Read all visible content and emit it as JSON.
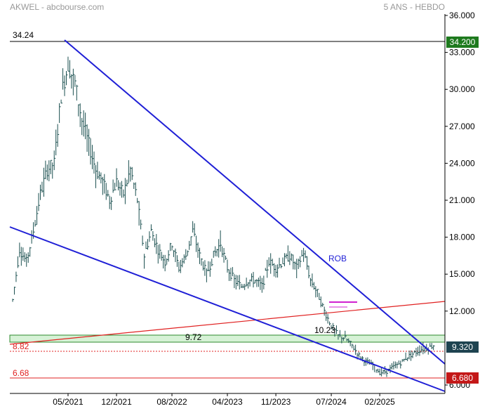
{
  "header": {
    "left_title": "AKWEL - abcbourse.com",
    "right_title": "5 ANS - HEBDO"
  },
  "colors": {
    "trendline": "#1f1fd6",
    "support": "#e02020",
    "zone_fill": "#d6f2d6",
    "zone_border": "#2e8b2e",
    "candle": "#1a4f4f",
    "last_price_badge": "#1e4350",
    "high_badge": "#1e7a1e",
    "low_badge": "#c41818",
    "marker": "#d020d0"
  },
  "chart_data": {
    "type": "candlestick",
    "title": "AKWEL - abcbourse.com",
    "subtitle": "5 ANS - HEBDO",
    "ylim": [
      6.0,
      36.0
    ],
    "y_ticks": [
      "36.000",
      "33.000",
      "30.000",
      "27.000",
      "24.000",
      "21.000",
      "18.000",
      "15.000",
      "12.000",
      "6.000"
    ],
    "x_ticks": [
      "05/2021",
      "12/2021",
      "08/2022",
      "04/2023",
      "11/2023",
      "07/2024",
      "02/2025"
    ],
    "grid": false,
    "price_badges": [
      {
        "label": "34.200",
        "value": 34.2,
        "kind": "high"
      },
      {
        "label": "9.320",
        "value": 9.32,
        "kind": "last"
      },
      {
        "label": "6.680",
        "value": 6.68,
        "kind": "low"
      }
    ],
    "horizontal_levels": [
      {
        "label": "34.24",
        "value": 34.24,
        "style": "solid-black"
      },
      {
        "label": "8.82",
        "value": 8.82,
        "style": "dotted-red"
      },
      {
        "label": "6.68",
        "value": 6.68,
        "style": "solid-red"
      }
    ],
    "zone": {
      "label": "9.72",
      "from": 9.23,
      "to": 9.83
    },
    "annotations": [
      {
        "text": "ROB",
        "x": "2024-03",
        "y": 16.7
      },
      {
        "text": "10.23",
        "x": "2024-05",
        "y": 10.23
      }
    ],
    "trendlines": [
      {
        "name": "downtrend-upper",
        "from": {
          "x": "2021-04",
          "y": 34.6
        },
        "to": {
          "x": "2025-11",
          "y": 8.9
        }
      },
      {
        "name": "downtrend-lower",
        "from": {
          "x": "2020-08",
          "y": 19.1
        },
        "to": {
          "x": "2025-11",
          "y": 6.1
        }
      },
      {
        "name": "support-rising",
        "from": {
          "x": "2020-08",
          "y": 8.6
        },
        "to": {
          "x": "2025-11",
          "y": 12.8
        }
      }
    ],
    "series": [
      {
        "values": [
          {
            "x": "2020-09",
            "close": 12.9
          },
          {
            "x": "2020-10",
            "close": 17.0
          },
          {
            "x": "2020-11",
            "close": 16.0
          },
          {
            "x": "2020-12",
            "close": 18.5
          },
          {
            "x": "2021-01",
            "close": 21.5
          },
          {
            "x": "2021-02",
            "close": 23.5
          },
          {
            "x": "2021-03",
            "close": 24.0
          },
          {
            "x": "2021-04",
            "close": 29.5
          },
          {
            "x": "2021-05",
            "close": 32.0
          },
          {
            "x": "2021-06",
            "close": 30.5
          },
          {
            "x": "2021-07",
            "close": 27.5
          },
          {
            "x": "2021-08",
            "close": 25.5
          },
          {
            "x": "2021-09",
            "close": 23.5
          },
          {
            "x": "2021-10",
            "close": 22.5
          },
          {
            "x": "2021-11",
            "close": 21.0
          },
          {
            "x": "2021-12",
            "close": 22.5
          },
          {
            "x": "2022-01",
            "close": 21.5
          },
          {
            "x": "2022-02",
            "close": 23.5
          },
          {
            "x": "2022-03",
            "close": 21.0
          },
          {
            "x": "2022-04",
            "close": 16.5
          },
          {
            "x": "2022-05",
            "close": 18.5
          },
          {
            "x": "2022-06",
            "close": 17.0
          },
          {
            "x": "2022-07",
            "close": 16.0
          },
          {
            "x": "2022-08",
            "close": 17.5
          },
          {
            "x": "2022-09",
            "close": 15.5
          },
          {
            "x": "2022-10",
            "close": 16.5
          },
          {
            "x": "2022-11",
            "close": 18.5
          },
          {
            "x": "2022-12",
            "close": 16.5
          },
          {
            "x": "2023-01",
            "close": 15.0
          },
          {
            "x": "2023-02",
            "close": 16.5
          },
          {
            "x": "2023-03",
            "close": 17.5
          },
          {
            "x": "2023-04",
            "close": 15.5
          },
          {
            "x": "2023-05",
            "close": 14.5
          },
          {
            "x": "2023-06",
            "close": 14.0
          },
          {
            "x": "2023-07",
            "close": 14.5
          },
          {
            "x": "2023-08",
            "close": 14.5
          },
          {
            "x": "2023-09",
            "close": 14.0
          },
          {
            "x": "2023-10",
            "close": 16.0
          },
          {
            "x": "2023-11",
            "close": 15.5
          },
          {
            "x": "2023-12",
            "close": 16.0
          },
          {
            "x": "2024-01",
            "close": 16.5
          },
          {
            "x": "2024-02",
            "close": 15.5
          },
          {
            "x": "2024-03",
            "close": 16.8
          },
          {
            "x": "2024-04",
            "close": 14.5
          },
          {
            "x": "2024-05",
            "close": 13.5
          },
          {
            "x": "2024-06",
            "close": 12.0
          },
          {
            "x": "2024-07",
            "close": 10.8
          },
          {
            "x": "2024-08",
            "close": 10.0
          },
          {
            "x": "2024-09",
            "close": 9.8
          },
          {
            "x": "2024-10",
            "close": 9.2
          },
          {
            "x": "2024-11",
            "close": 8.4
          },
          {
            "x": "2024-12",
            "close": 7.9
          },
          {
            "x": "2025-01",
            "close": 7.6
          },
          {
            "x": "2025-02",
            "close": 7.0
          },
          {
            "x": "2025-03",
            "close": 7.1
          },
          {
            "x": "2025-04",
            "close": 7.5
          },
          {
            "x": "2025-05",
            "close": 7.8
          },
          {
            "x": "2025-06",
            "close": 8.3
          },
          {
            "x": "2025-07",
            "close": 8.6
          },
          {
            "x": "2025-08",
            "close": 8.9
          },
          {
            "x": "2025-09",
            "close": 9.0
          },
          {
            "x": "2025-10",
            "close": 9.32
          }
        ]
      }
    ]
  }
}
